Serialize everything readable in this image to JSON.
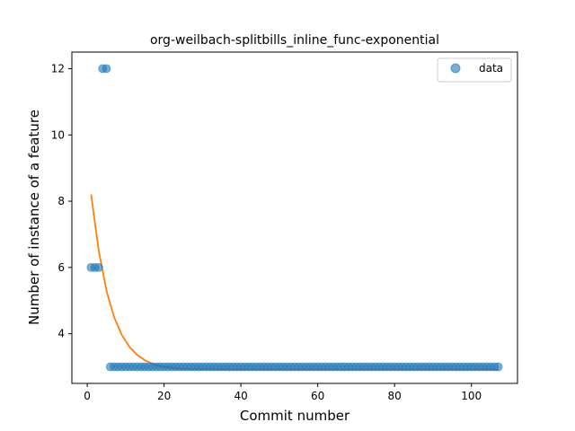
{
  "chart_data": {
    "type": "scatter",
    "title": "org-weilbach-splitbills_inline_func-exponential",
    "xlabel": "Commit number",
    "ylabel": "Number of instance of a feature",
    "xlim": [
      -4,
      112
    ],
    "ylim": [
      2.5,
      12.5
    ],
    "xticks": [
      0,
      20,
      40,
      60,
      80,
      100
    ],
    "yticks": [
      4,
      6,
      8,
      10,
      12
    ],
    "grid": false,
    "legend_position": "top-right",
    "series": [
      {
        "name": "data",
        "kind": "points",
        "color": "#1f77b4",
        "x": [
          1,
          2,
          3,
          4,
          5,
          6,
          7,
          8,
          9,
          10,
          11,
          12,
          13,
          14,
          15,
          16,
          17,
          18,
          19,
          20,
          21,
          22,
          23,
          24,
          25,
          26,
          27,
          28,
          29,
          30,
          31,
          32,
          33,
          34,
          35,
          36,
          37,
          38,
          39,
          40,
          41,
          42,
          43,
          44,
          45,
          46,
          47,
          48,
          49,
          50,
          51,
          52,
          53,
          54,
          55,
          56,
          57,
          58,
          59,
          60,
          61,
          62,
          63,
          64,
          65,
          66,
          67,
          68,
          69,
          70,
          71,
          72,
          73,
          74,
          75,
          76,
          77,
          78,
          79,
          80,
          81,
          82,
          83,
          84,
          85,
          86,
          87,
          88,
          89,
          90,
          91,
          92,
          93,
          94,
          95,
          96,
          97,
          98,
          99,
          100,
          101,
          102,
          103,
          104,
          105,
          106,
          107
        ],
        "y": [
          6,
          6,
          6,
          12,
          12,
          3,
          3,
          3,
          3,
          3,
          3,
          3,
          3,
          3,
          3,
          3,
          3,
          3,
          3,
          3,
          3,
          3,
          3,
          3,
          3,
          3,
          3,
          3,
          3,
          3,
          3,
          3,
          3,
          3,
          3,
          3,
          3,
          3,
          3,
          3,
          3,
          3,
          3,
          3,
          3,
          3,
          3,
          3,
          3,
          3,
          3,
          3,
          3,
          3,
          3,
          3,
          3,
          3,
          3,
          3,
          3,
          3,
          3,
          3,
          3,
          3,
          3,
          3,
          3,
          3,
          3,
          3,
          3,
          3,
          3,
          3,
          3,
          3,
          3,
          3,
          3,
          3,
          3,
          3,
          3,
          3,
          3,
          3,
          3,
          3,
          3,
          3,
          3,
          3,
          3,
          3,
          3,
          3,
          3,
          3,
          3,
          3,
          3,
          3,
          3,
          3,
          3
        ]
      },
      {
        "kind": "fit-line",
        "color": "#ff7f0e",
        "x": [
          1,
          3,
          5,
          7,
          9,
          11,
          13,
          15,
          17,
          19,
          21,
          23,
          25,
          30,
          35,
          40,
          50,
          60,
          70,
          80,
          90,
          100,
          107
        ],
        "y": [
          8.2,
          6.5,
          5.3,
          4.5,
          3.96,
          3.6,
          3.36,
          3.2,
          3.09,
          3.02,
          2.98,
          2.95,
          2.94,
          2.93,
          2.92,
          2.92,
          2.92,
          2.92,
          2.92,
          2.92,
          2.92,
          2.92,
          2.92
        ]
      }
    ]
  }
}
